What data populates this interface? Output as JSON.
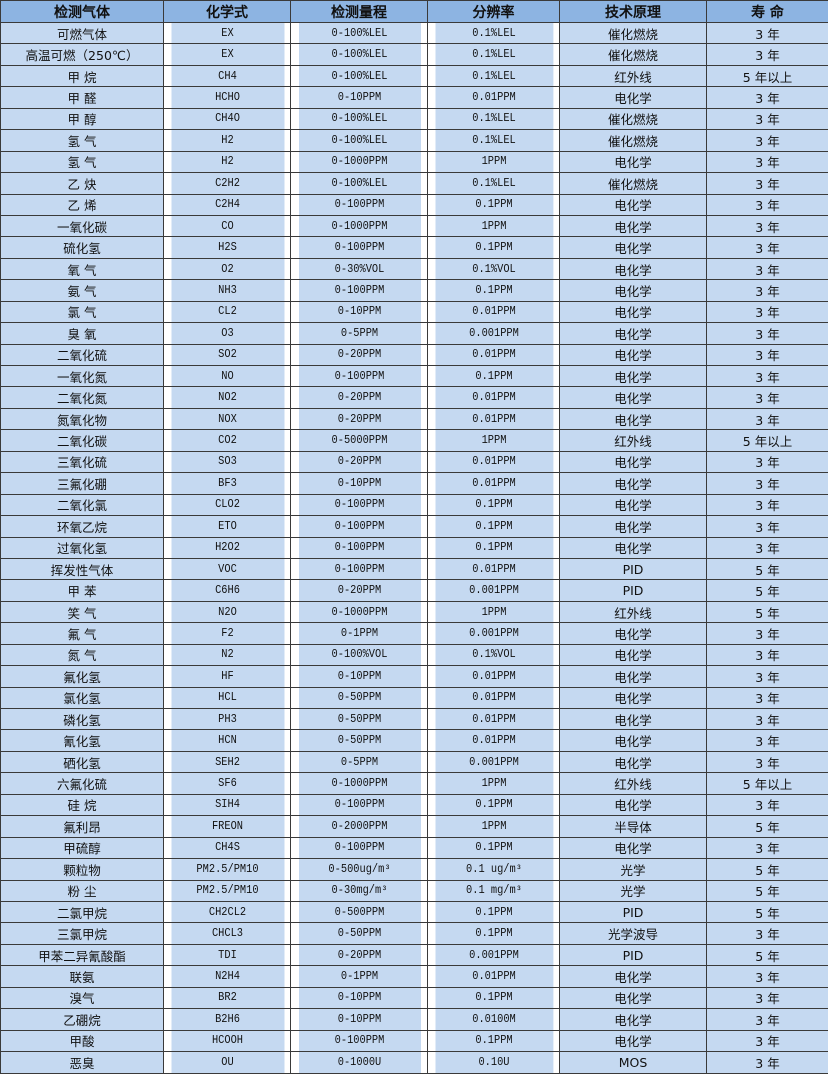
{
  "table": {
    "headers": [
      "检测气体",
      "化学式",
      "检测量程",
      "分辨率",
      "技术原理",
      "寿 命"
    ],
    "rows": [
      [
        "可燃气体",
        "EX",
        "0-100%LEL",
        "0.1%LEL",
        "催化燃烧",
        "3 年"
      ],
      [
        "高温可燃（250℃）",
        "EX",
        "0-100%LEL",
        "0.1%LEL",
        "催化燃烧",
        "3 年"
      ],
      [
        "甲 烷",
        "CH4",
        "0-100%LEL",
        "0.1%LEL",
        "红外线",
        "5 年以上"
      ],
      [
        "甲 醛",
        "HCHO",
        "0-10PPM",
        "0.01PPM",
        "电化学",
        "3 年"
      ],
      [
        "甲 醇",
        "CH4O",
        "0-100%LEL",
        "0.1%LEL",
        "催化燃烧",
        "3 年"
      ],
      [
        "氢 气",
        "H2",
        "0-100%LEL",
        "0.1%LEL",
        "催化燃烧",
        "3 年"
      ],
      [
        "氢 气",
        "H2",
        "0-1000PPM",
        "1PPM",
        "电化学",
        "3 年"
      ],
      [
        "乙 炔",
        "C2H2",
        "0-100%LEL",
        "0.1%LEL",
        "催化燃烧",
        "3 年"
      ],
      [
        "乙 烯",
        "C2H4",
        "0-100PPM",
        "0.1PPM",
        "电化学",
        "3 年"
      ],
      [
        "一氧化碳",
        "CO",
        "0-1000PPM",
        "1PPM",
        "电化学",
        "3 年"
      ],
      [
        "硫化氢",
        "H2S",
        "0-100PPM",
        "0.1PPM",
        "电化学",
        "3 年"
      ],
      [
        "氧 气",
        "O2",
        "0-30%VOL",
        "0.1%VOL",
        "电化学",
        "3 年"
      ],
      [
        "氨 气",
        "NH3",
        "0-100PPM",
        "0.1PPM",
        "电化学",
        "3 年"
      ],
      [
        "氯 气",
        "CL2",
        "0-10PPM",
        "0.01PPM",
        "电化学",
        "3 年"
      ],
      [
        "臭 氧",
        "O3",
        "0-5PPM",
        "0.001PPM",
        "电化学",
        "3 年"
      ],
      [
        "二氧化硫",
        "SO2",
        "0-20PPM",
        "0.01PPM",
        "电化学",
        "3 年"
      ],
      [
        "一氧化氮",
        "NO",
        "0-100PPM",
        "0.1PPM",
        "电化学",
        "3 年"
      ],
      [
        "二氧化氮",
        "NO2",
        "0-20PPM",
        "0.01PPM",
        "电化学",
        "3 年"
      ],
      [
        "氮氧化物",
        "NOX",
        "0-20PPM",
        "0.01PPM",
        "电化学",
        "3 年"
      ],
      [
        "二氧化碳",
        "CO2",
        "0-5000PPM",
        "1PPM",
        "红外线",
        "5 年以上"
      ],
      [
        "三氧化硫",
        "SO3",
        "0-20PPM",
        "0.01PPM",
        "电化学",
        "3 年"
      ],
      [
        "三氟化硼",
        "BF3",
        "0-10PPM",
        "0.01PPM",
        "电化学",
        "3 年"
      ],
      [
        "二氧化氯",
        "CLO2",
        "0-100PPM",
        "0.1PPM",
        "电化学",
        "3 年"
      ],
      [
        "环氧乙烷",
        "ETO",
        "0-100PPM",
        "0.1PPM",
        "电化学",
        "3 年"
      ],
      [
        "过氧化氢",
        "H2O2",
        "0-100PPM",
        "0.1PPM",
        "电化学",
        "3 年"
      ],
      [
        "挥发性气体",
        "VOC",
        "0-100PPM",
        "0.01PPM",
        "PID",
        "5 年"
      ],
      [
        "甲 苯",
        "C6H6",
        "0-20PPM",
        "0.001PPM",
        "PID",
        "5 年"
      ],
      [
        "笑 气",
        "N2O",
        "0-1000PPM",
        "1PPM",
        "红外线",
        "5 年"
      ],
      [
        "氟 气",
        "F2",
        "0-1PPM",
        "0.001PPM",
        "电化学",
        "3 年"
      ],
      [
        "氮 气",
        "N2",
        "0-100%VOL",
        "0.1%VOL",
        "电化学",
        "3 年"
      ],
      [
        "氟化氢",
        "HF",
        "0-10PPM",
        "0.01PPM",
        "电化学",
        "3 年"
      ],
      [
        "氯化氢",
        "HCL",
        "0-50PPM",
        "0.01PPM",
        "电化学",
        "3 年"
      ],
      [
        "磷化氢",
        "PH3",
        "0-50PPM",
        "0.01PPM",
        "电化学",
        "3 年"
      ],
      [
        "氰化氢",
        "HCN",
        "0-50PPM",
        "0.01PPM",
        "电化学",
        "3 年"
      ],
      [
        "硒化氢",
        "SEH2",
        "0-5PPM",
        "0.001PPM",
        "电化学",
        "3 年"
      ],
      [
        "六氟化硫",
        "SF6",
        "0-1000PPM",
        "1PPM",
        "红外线",
        "5 年以上"
      ],
      [
        "硅 烷",
        "SIH4",
        "0-100PPM",
        "0.1PPM",
        "电化学",
        "3 年"
      ],
      [
        "氟利昂",
        "FREON",
        "0-2000PPM",
        "1PPM",
        "半导体",
        "5 年"
      ],
      [
        "甲硫醇",
        "CH4S",
        "0-100PPM",
        "0.1PPM",
        "电化学",
        "3 年"
      ],
      [
        "颗粒物",
        "PM2.5/PM10",
        "0-500ug/m³",
        "0.1 ug/m³",
        "光学",
        "5 年"
      ],
      [
        "粉 尘",
        "PM2.5/PM10",
        "0-30mg/m³",
        "0.1 mg/m³",
        "光学",
        "5 年"
      ],
      [
        "二氯甲烷",
        "CH2CL2",
        "0-500PPM",
        "0.1PPM",
        "PID",
        "5 年"
      ],
      [
        "三氯甲烷",
        "CHCL3",
        "0-50PPM",
        "0.1PPM",
        "光学波导",
        "3 年"
      ],
      [
        "甲苯二异氰酸酯",
        "TDI",
        "0-20PPM",
        "0.001PPM",
        "PID",
        "5 年"
      ],
      [
        "联氨",
        "N2H4",
        "0-1PPM",
        "0.01PPM",
        "电化学",
        "3 年"
      ],
      [
        "溴气",
        "BR2",
        "0-10PPM",
        "0.1PPM",
        "电化学",
        "3 年"
      ],
      [
        "乙硼烷",
        "B2H6",
        "0-10PPM",
        "0.0100M",
        "电化学",
        "3 年"
      ],
      [
        "甲酸",
        "HCOOH",
        "0-100PPM",
        "0.1PPM",
        "电化学",
        "3 年"
      ],
      [
        "恶臭",
        "OU",
        "0-1000U",
        "0.10U",
        "MOS",
        "3 年"
      ]
    ]
  },
  "colors": {
    "header_bg": "#8db4e2",
    "row_bg": "#c5d9f1",
    "border": "#3a3a3a"
  }
}
